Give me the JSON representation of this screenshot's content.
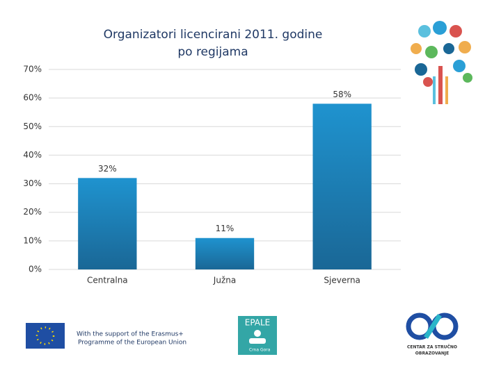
{
  "chart_data": {
    "type": "bar",
    "title": [
      "Organizatori licencirani 2011. godine",
      "po regijama"
    ],
    "categories": [
      "Centralna",
      "Južna",
      "Sjeverna"
    ],
    "values": [
      32,
      11,
      58
    ],
    "value_labels": [
      "32%",
      "11%",
      "58%"
    ],
    "color": "#1f88c0",
    "ylim": [
      0,
      70
    ],
    "yticks": [
      {
        "value": 0,
        "label": "0%"
      },
      {
        "value": 10,
        "label": "10%"
      },
      {
        "value": 20,
        "label": "20%"
      },
      {
        "value": 30,
        "label": "30%"
      },
      {
        "value": 40,
        "label": "40%"
      },
      {
        "value": 50,
        "label": "50%"
      },
      {
        "value": 60,
        "label": "60%"
      },
      {
        "value": 70,
        "label": "70%"
      }
    ],
    "grid": true
  },
  "footer": {
    "support": [
      "With the support of the Erasmus+",
      "Programme of the European Union"
    ],
    "epale": "EPALE",
    "epale_country": "Crna Gora",
    "cso": [
      "CENTAR ZA STRUČNO",
      "OBRAZOVANJE"
    ]
  }
}
